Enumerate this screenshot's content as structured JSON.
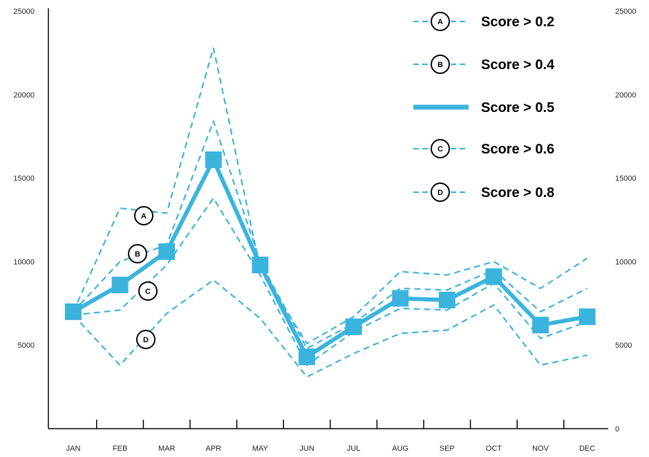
{
  "chart_data": {
    "type": "line",
    "categories": [
      "JAN",
      "FEB",
      "MAR",
      "APR",
      "MAY",
      "JUN",
      "JUL",
      "AUG",
      "SEP",
      "OCT",
      "NOV",
      "DEC"
    ],
    "ylim": [
      0,
      25000
    ],
    "yticks": [
      0,
      5000,
      10000,
      15000,
      20000,
      25000
    ],
    "series": [
      {
        "name": "Score > 0.2",
        "badge": "A",
        "style": "dashed",
        "values": [
          7000,
          13200,
          12900,
          22800,
          9600,
          5100,
          6700,
          9400,
          9200,
          10000,
          8400,
          10200
        ]
      },
      {
        "name": "Score > 0.4",
        "badge": "B",
        "style": "dashed",
        "values": [
          7000,
          10000,
          11000,
          18400,
          10000,
          4800,
          6300,
          8400,
          8300,
          9500,
          7000,
          8400
        ]
      },
      {
        "name": "Score > 0.5",
        "badge": null,
        "style": "solid",
        "values": [
          7000,
          8600,
          10600,
          16100,
          9800,
          4300,
          6100,
          7800,
          7700,
          9100,
          6200,
          6700
        ]
      },
      {
        "name": "Score > 0.6",
        "badge": "C",
        "style": "dashed",
        "values": [
          6800,
          7100,
          9800,
          13800,
          9200,
          3800,
          5800,
          7200,
          7100,
          8700,
          5400,
          6400
        ]
      },
      {
        "name": "Score > 0.8",
        "badge": "D",
        "style": "dashed",
        "values": [
          6800,
          3800,
          6900,
          8900,
          6600,
          3100,
          4500,
          5700,
          5900,
          7400,
          3800,
          4400
        ]
      }
    ],
    "series_color": "#3bb4dd",
    "legend_position": "top-right",
    "axes": "left-and-right y-axis labels, x-axis with tick marks",
    "grid": false
  }
}
